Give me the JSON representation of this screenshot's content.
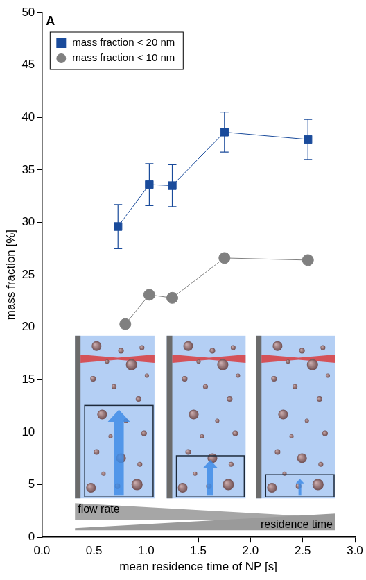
{
  "chart_data": {
    "type": "line",
    "panel": "A",
    "xlabel": "mean residence time of NP [s]",
    "ylabel": "mass fraction [%]",
    "xlim": [
      0,
      3
    ],
    "xticks": [
      {
        "value": 0,
        "label": "0.0"
      },
      0.5,
      {
        "value": 1,
        "label": "1.0"
      },
      1.5,
      {
        "value": 2,
        "label": "2.0"
      },
      2.5,
      {
        "value": 3,
        "label": "3.0"
      }
    ],
    "ylim": [
      0,
      50
    ],
    "yticks": [
      0,
      5,
      10,
      15,
      20,
      25,
      30,
      35,
      40,
      45,
      50
    ],
    "grid": false,
    "legend": "upper left",
    "series": [
      {
        "name": "mass fraction < 20 nm",
        "color": "#1a4b9b",
        "marker": "square",
        "x": [
          0.73,
          1.03,
          1.25,
          1.75,
          2.55
        ],
        "values": [
          29.6,
          33.6,
          33.5,
          38.6,
          37.9
        ],
        "errors": [
          2.1,
          2.0,
          2.0,
          1.9,
          1.9
        ]
      },
      {
        "name": "mass fraction < 10 nm",
        "color": "#808080",
        "marker": "circle",
        "x": [
          0.8,
          1.03,
          1.25,
          1.75,
          2.55
        ],
        "values": [
          20.3,
          23.1,
          22.8,
          26.6,
          26.4
        ]
      }
    ],
    "annotations": [
      "flow rate",
      "residence time"
    ]
  }
}
